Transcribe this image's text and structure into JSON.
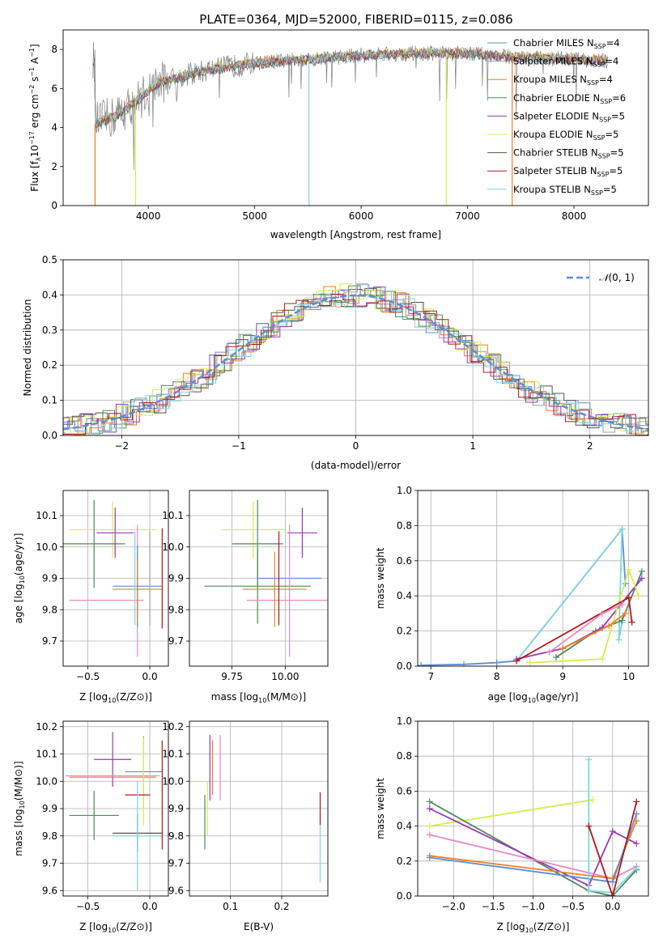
{
  "figure": {
    "title": "PLATE=0364, MJD=52000, FIBERID=0115, z=0.086"
  },
  "colors": {
    "chabrier_miles": "#5b8fd4",
    "salpeter_miles": "#9f9f9f",
    "kroupa_miles": "#f07f22",
    "chabrier_elodie": "#4f8a5a",
    "salpeter_elodie": "#9b37b8",
    "kroupa_elodie": "#d7ec4f",
    "chabrier_stelib": "#555555",
    "salpeter_stelib": "#b0181c",
    "kroupa_stelib": "#7fd6de",
    "pink": "#e889c1",
    "gaussian": "#5b8fd4"
  },
  "chart_data": [
    {
      "id": "spectrum",
      "type": "line",
      "xlabel": "wavelength [Angstrom, rest frame]",
      "ylabel": "Flux [f",
      "xlim": [
        3200,
        8700
      ],
      "ylim": [
        0,
        9
      ],
      "xticks": [
        "4000",
        "5000",
        "6000",
        "7000",
        "8000"
      ],
      "yticks": [
        "0",
        "2",
        "4",
        "6",
        "8"
      ],
      "grid": false,
      "legend_position": "right",
      "legend": [
        {
          "imf": "Chabrier MILES",
          "n": "4",
          "color": "#5b8fd4"
        },
        {
          "imf": "Salpeter MILES",
          "n": "4",
          "color": "#9f9f9f"
        },
        {
          "imf": "Kroupa MILES",
          "n": "4",
          "color": "#f07f22"
        },
        {
          "imf": "Chabrier ELODIE",
          "n": "6",
          "color": "#4f8a5a"
        },
        {
          "imf": "Salpeter ELODIE",
          "n": "5",
          "color": "#9b37b8"
        },
        {
          "imf": "Kroupa ELODIE",
          "n": "5",
          "color": "#d7ec4f"
        },
        {
          "imf": "Chabrier STELIB",
          "n": "5",
          "color": "#555555"
        },
        {
          "imf": "Salpeter STELIB",
          "n": "5",
          "color": "#b0181c"
        },
        {
          "imf": "Kroupa STELIB",
          "n": "5",
          "color": "#7fd6de"
        }
      ],
      "continuum_points": [
        [
          3500,
          4.2
        ],
        [
          3700,
          4.6
        ],
        [
          3900,
          5.4
        ],
        [
          4000,
          5.9
        ],
        [
          4100,
          6.3
        ],
        [
          4300,
          6.6
        ],
        [
          4600,
          7.0
        ],
        [
          5000,
          7.3
        ],
        [
          5500,
          7.5
        ],
        [
          6000,
          7.7
        ],
        [
          6500,
          7.8
        ],
        [
          7000,
          7.8
        ],
        [
          7500,
          7.6
        ],
        [
          8000,
          7.5
        ],
        [
          8300,
          7.4
        ]
      ]
    },
    {
      "id": "residuals",
      "type": "line",
      "xlabel": "(data-model)/error",
      "ylabel": "Normed distribution",
      "xlim": [
        -2.5,
        2.5
      ],
      "ylim": [
        0,
        0.5
      ],
      "xticks": [
        "−2",
        "−1",
        "0",
        "1",
        "2"
      ],
      "yticks": [
        "0.0",
        "0.1",
        "0.2",
        "0.3",
        "0.4",
        "0.5"
      ],
      "grid": true,
      "legend_position": "top-right",
      "legend_label": "(0, 1)",
      "gaussian": {
        "mu": 0,
        "sigma": 1
      }
    },
    {
      "id": "age_vs_Z",
      "type": "scatter",
      "xlabel": "Z [log",
      "ylabel": "age  [log",
      "xlim": [
        -0.7,
        0.15
      ],
      "ylim": [
        9.62,
        10.18
      ],
      "xticks": [
        "−0.5",
        "0.0"
      ],
      "yticks": [
        "9.7",
        "9.8",
        "9.9",
        "10.0",
        "10.1"
      ],
      "grid": true,
      "points": [
        {
          "x": -0.3,
          "xerr": 0.35,
          "y": 10.055,
          "yerr": 0.09,
          "color": "#d7ec4f"
        },
        {
          "x": -0.45,
          "xerr": 0.25,
          "y": 10.01,
          "yerr": 0.14,
          "color": "#4f8a5a"
        },
        {
          "x": -0.28,
          "xerr": 0.15,
          "y": 10.045,
          "yerr": 0.08,
          "color": "#9b37b8"
        },
        {
          "x": -0.35,
          "xerr": 0.3,
          "y": 9.83,
          "yerr": 0.0,
          "color": "#e889c1"
        },
        {
          "x": -0.1,
          "xerr": 0.0,
          "y": 9.86,
          "yerr": 0.21,
          "color": "#e889c1"
        },
        {
          "x": -0.1,
          "xerr": 0.2,
          "y": 9.875,
          "yerr": 0.13,
          "color": "#5b8fd4"
        },
        {
          "x": -0.1,
          "xerr": 0.2,
          "y": 9.865,
          "yerr": 0.1,
          "color": "#f07f22"
        },
        {
          "x": 0.0,
          "xerr": 0.0,
          "y": 9.9,
          "yerr": 0.15,
          "color": "#9f9f9f"
        },
        {
          "x": 0.1,
          "xerr": 0.0,
          "y": 9.9,
          "yerr": 0.16,
          "color": "#b0181c"
        },
        {
          "x": -0.12,
          "xerr": 0.0,
          "y": 9.9,
          "yerr": 0.15,
          "color": "#7fd6de"
        }
      ]
    },
    {
      "id": "age_vs_mass",
      "type": "scatter",
      "xlabel": "mass [log",
      "ylabel": "",
      "xlim": [
        9.55,
        10.2
      ],
      "ylim": [
        9.62,
        10.18
      ],
      "xticks": [
        "9.75",
        "10.00"
      ],
      "yticks": [
        "9.7",
        "9.8",
        "9.9",
        "10.0",
        "10.1"
      ],
      "grid": true,
      "points": [
        {
          "x": 9.85,
          "xerr": 0.15,
          "y": 10.055,
          "yerr": 0.09,
          "color": "#d7ec4f"
        },
        {
          "x": 9.87,
          "xerr": 0.12,
          "y": 10.01,
          "yerr": 0.14,
          "color": "#4f8a5a"
        },
        {
          "x": 10.08,
          "xerr": 0.07,
          "y": 10.045,
          "yerr": 0.08,
          "color": "#9b37b8"
        },
        {
          "x": 9.87,
          "xerr": 0.25,
          "y": 9.875,
          "yerr": 0.12,
          "color": "#4f8a5a"
        },
        {
          "x": 10.02,
          "xerr": 0.2,
          "y": 9.83,
          "yerr": 0.0,
          "color": "#e889c1"
        },
        {
          "x": 10.02,
          "xerr": 0.15,
          "y": 9.9,
          "yerr": 0.0,
          "color": "#5b8fd4"
        },
        {
          "x": 9.95,
          "xerr": 0.15,
          "y": 9.865,
          "yerr": 0.12,
          "color": "#f07f22"
        },
        {
          "x": 9.97,
          "xerr": 0.0,
          "y": 9.9,
          "yerr": 0.15,
          "color": "#b0181c"
        },
        {
          "x": 10.02,
          "xerr": 0.0,
          "y": 9.86,
          "yerr": 0.21,
          "color": "#e889c1"
        }
      ]
    },
    {
      "id": "massweight_vs_age",
      "type": "line",
      "xlabel": "age  [log",
      "ylabel": "mass weight",
      "xlim": [
        6.8,
        10.3
      ],
      "ylim": [
        0,
        1
      ],
      "xticks": [
        "7",
        "8",
        "9",
        "10"
      ],
      "yticks": [
        "0.0",
        "0.2",
        "0.4",
        "0.6",
        "0.8",
        "1.0"
      ],
      "grid": true,
      "series": [
        {
          "color": "#5b8fd4",
          "x": [
            6.85,
            7.5,
            8.0,
            8.3,
            9.9,
            9.95
          ],
          "y": [
            0.005,
            0.01,
            0.02,
            0.03,
            0.78,
            0.47
          ]
        },
        {
          "color": "#7fd6de",
          "x": [
            8.3,
            9.9,
            9.85,
            9.9
          ],
          "y": [
            0.03,
            0.78,
            0.15,
            0.25
          ]
        },
        {
          "color": "#4f8a5a",
          "x": [
            8.9,
            9.5,
            9.9,
            10.2
          ],
          "y": [
            0.05,
            0.2,
            0.26,
            0.54
          ]
        },
        {
          "color": "#9b37b8",
          "x": [
            8.3,
            9.0,
            9.6,
            10.2
          ],
          "y": [
            0.04,
            0.1,
            0.22,
            0.5
          ]
        },
        {
          "color": "#d7ec4f",
          "x": [
            8.5,
            9.6,
            10.0,
            10.15
          ],
          "y": [
            0.02,
            0.04,
            0.55,
            0.4
          ]
        },
        {
          "color": "#b0181c",
          "x": [
            8.3,
            10.0,
            10.05
          ],
          "y": [
            0.03,
            0.39,
            0.25
          ]
        },
        {
          "color": "#e889c1",
          "x": [
            8.8,
            9.6,
            9.9
          ],
          "y": [
            0.08,
            0.3,
            0.35
          ]
        },
        {
          "color": "#f07f22",
          "x": [
            9.0,
            9.7,
            9.95
          ],
          "y": [
            0.1,
            0.23,
            0.3
          ]
        }
      ]
    },
    {
      "id": "mass_vs_Z",
      "type": "scatter",
      "xlabel": "Z [log",
      "ylabel": "mass [log",
      "xlim": [
        -0.7,
        0.15
      ],
      "ylim": [
        9.58,
        10.22
      ],
      "xticks": [
        "−0.5",
        "0.0"
      ],
      "yticks": [
        "9.6",
        "9.7",
        "9.8",
        "9.9",
        "10.0",
        "10.1",
        "10.2"
      ],
      "grid": true,
      "points": [
        {
          "x": -0.3,
          "xerr": 0.15,
          "y": 10.08,
          "yerr": 0.1,
          "color": "#9b37b8"
        },
        {
          "x": -0.05,
          "xerr": 0.15,
          "y": 10.035,
          "yerr": 0.13,
          "color": "#5b8fd4"
        },
        {
          "x": -0.3,
          "xerr": 0.38,
          "y": 10.02,
          "yerr": 0.0,
          "color": "#e889c1"
        },
        {
          "x": -0.3,
          "xerr": 0.35,
          "y": 10.015,
          "yerr": 0.0,
          "color": "#f07f22"
        },
        {
          "x": -0.05,
          "xerr": 0.0,
          "y": 10.0,
          "yerr": 0.16,
          "color": "#d7ec4f"
        },
        {
          "x": -0.45,
          "xerr": 0.2,
          "y": 9.875,
          "yerr": 0.09,
          "color": "#4f8a5a"
        },
        {
          "x": -0.1,
          "xerr": 0.1,
          "y": 9.95,
          "yerr": 0.0,
          "color": "#b0181c"
        },
        {
          "x": -0.1,
          "xerr": 0.2,
          "y": 9.81,
          "yerr": 0.07,
          "color": "#555555"
        },
        {
          "x": -0.1,
          "xerr": 0.2,
          "y": 9.8,
          "yerr": 0.2,
          "color": "#7fd6de"
        },
        {
          "x": 0.1,
          "xerr": 0.0,
          "y": 9.95,
          "yerr": 0.2,
          "color": "#b0181c"
        }
      ]
    },
    {
      "id": "mass_vs_ebv",
      "type": "scatter",
      "xlabel": "E(B-V)",
      "ylabel": "",
      "xlim": [
        0.02,
        0.29
      ],
      "ylim": [
        9.58,
        10.22
      ],
      "xticks": [
        "0.1",
        "0.2"
      ],
      "yticks": [
        "9.6",
        "9.7",
        "9.8",
        "9.9",
        "10.0",
        "10.1",
        "10.2"
      ],
      "grid": true,
      "points": [
        {
          "x": 0.05,
          "y": 9.85,
          "yerr": 0.1,
          "color": "#4f8a5a"
        },
        {
          "x": 0.055,
          "y": 9.9,
          "yerr": 0.1,
          "color": "#d7ec4f"
        },
        {
          "x": 0.06,
          "y": 10.05,
          "yerr": 0.12,
          "color": "#9b37b8"
        },
        {
          "x": 0.065,
          "y": 10.05,
          "yerr": 0.1,
          "color": "#f07f22"
        },
        {
          "x": 0.08,
          "y": 10.05,
          "yerr": 0.12,
          "color": "#e889c1"
        },
        {
          "x": 0.275,
          "y": 9.75,
          "yerr": 0.12,
          "color": "#7fd6de"
        },
        {
          "x": 0.275,
          "y": 9.9,
          "yerr": 0.06,
          "color": "#b0181c"
        }
      ]
    },
    {
      "id": "massweight_vs_Z",
      "type": "line",
      "xlabel": "Z [log",
      "ylabel": "mass weight",
      "xlim": [
        -2.45,
        0.45
      ],
      "ylim": [
        0,
        1
      ],
      "xticks": [
        "−2.0",
        "−1.5",
        "−1.0",
        "−0.5",
        "0.0"
      ],
      "yticks": [
        "0.0",
        "0.2",
        "0.4",
        "0.6",
        "0.8",
        "1.0"
      ],
      "grid": true,
      "series": [
        {
          "color": "#d7ec4f",
          "x": [
            -2.3,
            -0.25
          ],
          "y": [
            0.4,
            0.55
          ]
        },
        {
          "color": "#4f8a5a",
          "x": [
            -2.3,
            -0.3,
            0.0,
            0.3
          ],
          "y": [
            0.54,
            0.03,
            0.0,
            0.15
          ]
        },
        {
          "color": "#9b37b8",
          "x": [
            -2.3,
            -0.3,
            0.0,
            0.3
          ],
          "y": [
            0.5,
            0.06,
            0.37,
            0.3
          ]
        },
        {
          "color": "#e889c1",
          "x": [
            -2.3,
            0.0,
            0.3
          ],
          "y": [
            0.35,
            0.1,
            0.17
          ]
        },
        {
          "color": "#f07f22",
          "x": [
            -2.3,
            0.0,
            0.3
          ],
          "y": [
            0.23,
            0.1,
            0.43
          ]
        },
        {
          "color": "#5b8fd4",
          "x": [
            -2.3,
            0.0,
            0.3
          ],
          "y": [
            0.22,
            0.08,
            0.47
          ]
        },
        {
          "color": "#7fd6de",
          "x": [
            -0.3,
            -0.3,
            0.0,
            0.3
          ],
          "y": [
            0.78,
            0.03,
            0.02,
            0.16
          ]
        },
        {
          "color": "#b0181c",
          "x": [
            -0.3,
            0.0,
            0.3
          ],
          "y": [
            0.4,
            0.0,
            0.54
          ]
        }
      ]
    }
  ]
}
